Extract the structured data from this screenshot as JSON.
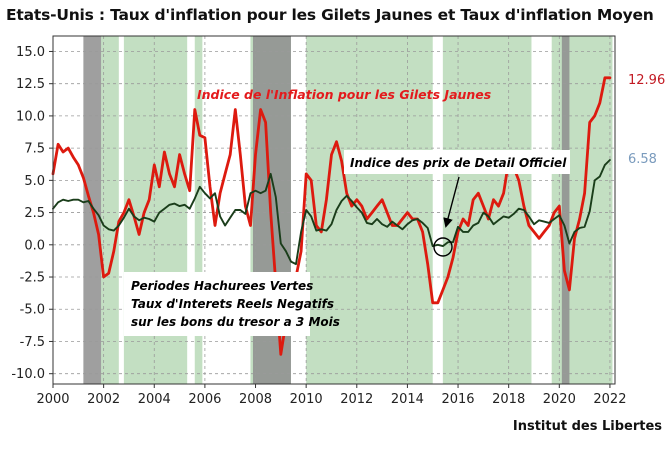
{
  "title": "Etats-Unis : Taux d'inflation pour les Gilets Jaunes et Taux d'inflation Moyen",
  "source": "Institut des Libertes",
  "chart_data": {
    "type": "line",
    "xlim": [
      2000,
      2022.2
    ],
    "ylim": [
      -10.8,
      16.2
    ],
    "x_ticks": [
      "2000",
      "2002",
      "2004",
      "2006",
      "2008",
      "2010",
      "2012",
      "2014",
      "2016",
      "2018",
      "2020",
      "2022"
    ],
    "y_ticks": [
      "15.0",
      "12.5",
      "10.0",
      "7.5",
      "5.0",
      "2.5",
      "0.0",
      "-2.5",
      "-5.0",
      "-7.5",
      "-10.0"
    ],
    "grid": true,
    "colors": {
      "gilets": "#dd1a0f",
      "official": "#1a3d1a",
      "green_band": "#c3dfc2",
      "grey_band": "#8e8e8e",
      "gilets_label": "#c21a23",
      "official_label": "#7a9bbd"
    },
    "green_periods": [
      [
        2001.9,
        2002.6
      ],
      [
        2002.8,
        2005.3
      ],
      [
        2005.6,
        2005.9
      ],
      [
        2007.8,
        2009.4
      ],
      [
        2010.0,
        2015.0
      ],
      [
        2015.4,
        2018.9
      ],
      [
        2019.7,
        2022.1
      ]
    ],
    "grey_periods": [
      [
        2001.2,
        2001.9
      ],
      [
        2007.9,
        2009.4
      ],
      [
        2020.1,
        2020.4
      ]
    ],
    "series": [
      {
        "key": "gilets",
        "x": [
          2000.0,
          2000.2,
          2000.4,
          2000.6,
          2000.8,
          2001.0,
          2001.2,
          2001.4,
          2001.6,
          2001.8,
          2002.0,
          2002.2,
          2002.4,
          2002.6,
          2002.8,
          2003.0,
          2003.2,
          2003.4,
          2003.6,
          2003.8,
          2004.0,
          2004.2,
          2004.4,
          2004.6,
          2004.8,
          2005.0,
          2005.2,
          2005.4,
          2005.6,
          2005.8,
          2006.0,
          2006.2,
          2006.4,
          2006.6,
          2006.8,
          2007.0,
          2007.2,
          2007.4,
          2007.6,
          2007.8,
          2008.0,
          2008.2,
          2008.4,
          2008.6,
          2008.8,
          2009.0,
          2009.2,
          2009.4,
          2009.6,
          2009.8,
          2010.0,
          2010.2,
          2010.4,
          2010.6,
          2010.8,
          2011.0,
          2011.2,
          2011.4,
          2011.6,
          2011.8,
          2012.0,
          2012.2,
          2012.4,
          2012.6,
          2012.8,
          2013.0,
          2013.2,
          2013.4,
          2013.6,
          2013.8,
          2014.0,
          2014.2,
          2014.4,
          2014.6,
          2014.8,
          2015.0,
          2015.2,
          2015.4,
          2015.6,
          2015.8,
          2016.0,
          2016.2,
          2016.4,
          2016.6,
          2016.8,
          2017.0,
          2017.2,
          2017.4,
          2017.6,
          2017.8,
          2018.0,
          2018.2,
          2018.4,
          2018.6,
          2018.8,
          2019.0,
          2019.2,
          2019.4,
          2019.6,
          2019.8,
          2020.0,
          2020.2,
          2020.4,
          2020.6,
          2020.8,
          2021.0,
          2021.2,
          2021.4,
          2021.6,
          2021.8,
          2022.0
        ],
        "values": [
          5.5,
          7.8,
          7.2,
          7.5,
          6.8,
          6.2,
          5.2,
          3.8,
          2.5,
          0.8,
          -2.5,
          -2.2,
          -0.5,
          1.8,
          2.5,
          3.5,
          2.2,
          0.8,
          2.5,
          3.5,
          6.2,
          4.5,
          7.2,
          5.5,
          4.5,
          7.0,
          5.5,
          4.2,
          10.5,
          8.5,
          8.3,
          4.5,
          1.5,
          4.0,
          5.5,
          7.0,
          10.5,
          7.0,
          3.0,
          1.5,
          7.0,
          10.5,
          9.5,
          2.5,
          -3.0,
          -8.5,
          -6.0,
          -4.0,
          -2.5,
          -0.5,
          5.5,
          5.0,
          1.5,
          1.0,
          3.5,
          7.0,
          8.0,
          6.5,
          4.0,
          3.0,
          3.5,
          3.0,
          2.0,
          2.5,
          3.0,
          3.5,
          2.5,
          1.5,
          1.5,
          2.0,
          2.5,
          2.0,
          2.0,
          1.0,
          -1.5,
          -4.5,
          -4.5,
          -3.5,
          -2.5,
          -1.0,
          1.0,
          2.0,
          1.5,
          3.5,
          4.0,
          3.0,
          2.0,
          3.5,
          3.0,
          4.0,
          6.5,
          6.0,
          5.0,
          3.0,
          1.5,
          1.0,
          0.5,
          1.0,
          1.5,
          2.5,
          3.0,
          -2.0,
          -3.5,
          0.5,
          2.0,
          4.0,
          9.5,
          10.0,
          11.0,
          12.96,
          12.96
        ]
      },
      {
        "key": "official",
        "x": [
          2000.0,
          2000.2,
          2000.4,
          2000.6,
          2000.8,
          2001.0,
          2001.2,
          2001.4,
          2001.6,
          2001.8,
          2002.0,
          2002.2,
          2002.4,
          2002.6,
          2002.8,
          2003.0,
          2003.2,
          2003.4,
          2003.6,
          2003.8,
          2004.0,
          2004.2,
          2004.4,
          2004.6,
          2004.8,
          2005.0,
          2005.2,
          2005.4,
          2005.6,
          2005.8,
          2006.0,
          2006.2,
          2006.4,
          2006.6,
          2006.8,
          2007.0,
          2007.2,
          2007.4,
          2007.6,
          2007.8,
          2008.0,
          2008.2,
          2008.4,
          2008.6,
          2008.8,
          2009.0,
          2009.2,
          2009.4,
          2009.6,
          2009.8,
          2010.0,
          2010.2,
          2010.4,
          2010.6,
          2010.8,
          2011.0,
          2011.2,
          2011.4,
          2011.6,
          2011.8,
          2012.0,
          2012.2,
          2012.4,
          2012.6,
          2012.8,
          2013.0,
          2013.2,
          2013.4,
          2013.6,
          2013.8,
          2014.0,
          2014.2,
          2014.4,
          2014.6,
          2014.8,
          2015.0,
          2015.2,
          2015.4,
          2015.6,
          2015.8,
          2016.0,
          2016.2,
          2016.4,
          2016.6,
          2016.8,
          2017.0,
          2017.2,
          2017.4,
          2017.6,
          2017.8,
          2018.0,
          2018.2,
          2018.4,
          2018.6,
          2018.8,
          2019.0,
          2019.2,
          2019.4,
          2019.6,
          2019.8,
          2020.0,
          2020.2,
          2020.4,
          2020.6,
          2020.8,
          2021.0,
          2021.2,
          2021.4,
          2021.6,
          2021.8,
          2022.0
        ],
        "values": [
          2.8,
          3.3,
          3.5,
          3.4,
          3.5,
          3.5,
          3.3,
          3.4,
          2.8,
          2.3,
          1.5,
          1.2,
          1.1,
          1.5,
          2.1,
          2.8,
          2.2,
          1.9,
          2.1,
          2.0,
          1.8,
          2.5,
          2.8,
          3.1,
          3.2,
          3.0,
          3.1,
          2.8,
          3.6,
          4.5,
          4.0,
          3.6,
          4.0,
          2.2,
          1.5,
          2.1,
          2.7,
          2.7,
          2.4,
          4.0,
          4.2,
          4.0,
          4.2,
          5.5,
          3.7,
          0.1,
          -0.5,
          -1.3,
          -1.5,
          1.0,
          2.7,
          2.2,
          1.1,
          1.2,
          1.1,
          1.6,
          2.7,
          3.4,
          3.8,
          3.4,
          2.9,
          2.5,
          1.7,
          1.6,
          2.0,
          1.6,
          1.4,
          1.8,
          1.5,
          1.2,
          1.6,
          1.9,
          2.0,
          1.7,
          1.3,
          -0.1,
          0.0,
          -0.1,
          0.2,
          0.2,
          1.4,
          1.0,
          1.0,
          1.5,
          1.7,
          2.5,
          2.2,
          1.6,
          1.9,
          2.2,
          2.1,
          2.4,
          2.8,
          2.7,
          2.2,
          1.6,
          1.9,
          1.8,
          1.7,
          2.0,
          2.3,
          1.5,
          0.1,
          1.0,
          1.3,
          1.4,
          2.6,
          5.0,
          5.3,
          6.2,
          6.58
        ]
      }
    ],
    "end_labels": {
      "gilets": "12.96",
      "official": "6.58"
    },
    "annotations": {
      "gilets_label": "Indice de l'Inflation pour les Gilets Jaunes",
      "official_label": "Indice des prix de Detail Officiel",
      "shading_lines": [
        "Periodes Hachurees Vertes",
        "Taux d'Interets Reels Negatifs",
        "sur les bons du tresor a 3 Mois"
      ]
    }
  }
}
